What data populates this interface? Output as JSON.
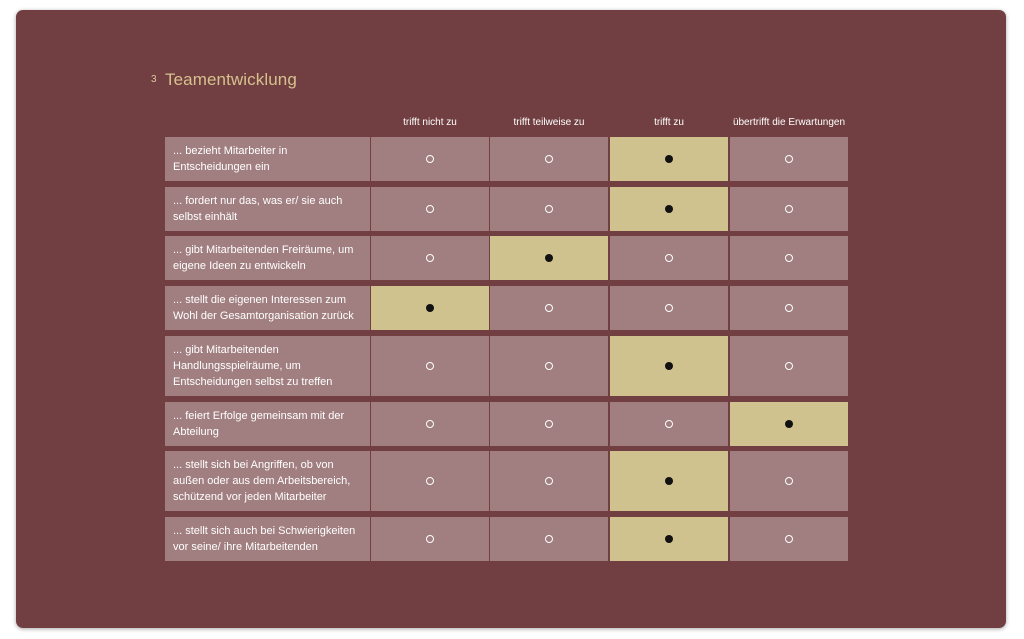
{
  "section": {
    "number": "3",
    "title": "Teamentwicklung"
  },
  "columns": [
    "trifft nicht zu",
    "trifft teilweise zu",
    "trifft zu",
    "übertrifft die Erwartungen"
  ],
  "rows": [
    {
      "label": "... bezieht Mitarbeiter in Entscheidungen ein",
      "selected": 2
    },
    {
      "label": "... fordert nur das, was er/ sie auch selbst einhält",
      "selected": 2
    },
    {
      "label": "... gibt Mitarbeitenden Freiräume, um eigene Ideen zu entwickeln",
      "selected": 1
    },
    {
      "label": "... stellt die eigenen Interessen zum Wohl der Gesamtorganisation zurück",
      "selected": 0
    },
    {
      "label": "... gibt Mitarbeitenden Handlungsspielräume, um Entscheidungen selbst zu treffen",
      "selected": 2
    },
    {
      "label": "... feiert Erfolge gemeinsam mit der Abteilung",
      "selected": 3
    },
    {
      "label": "... stellt sich bei Angriffen, ob von außen oder aus dem Arbeitsbereich, schützend vor jeden Mitarbeiter",
      "selected": 2
    },
    {
      "label": "... stellt sich auch bei Schwierigkeiten vor seine/ ihre Mitarbeitenden",
      "selected": 2
    }
  ],
  "colors": {
    "background": "#713f41",
    "cell": "#a17f80",
    "selected_cell": "#cfc28f",
    "title": "#d6c18e"
  }
}
